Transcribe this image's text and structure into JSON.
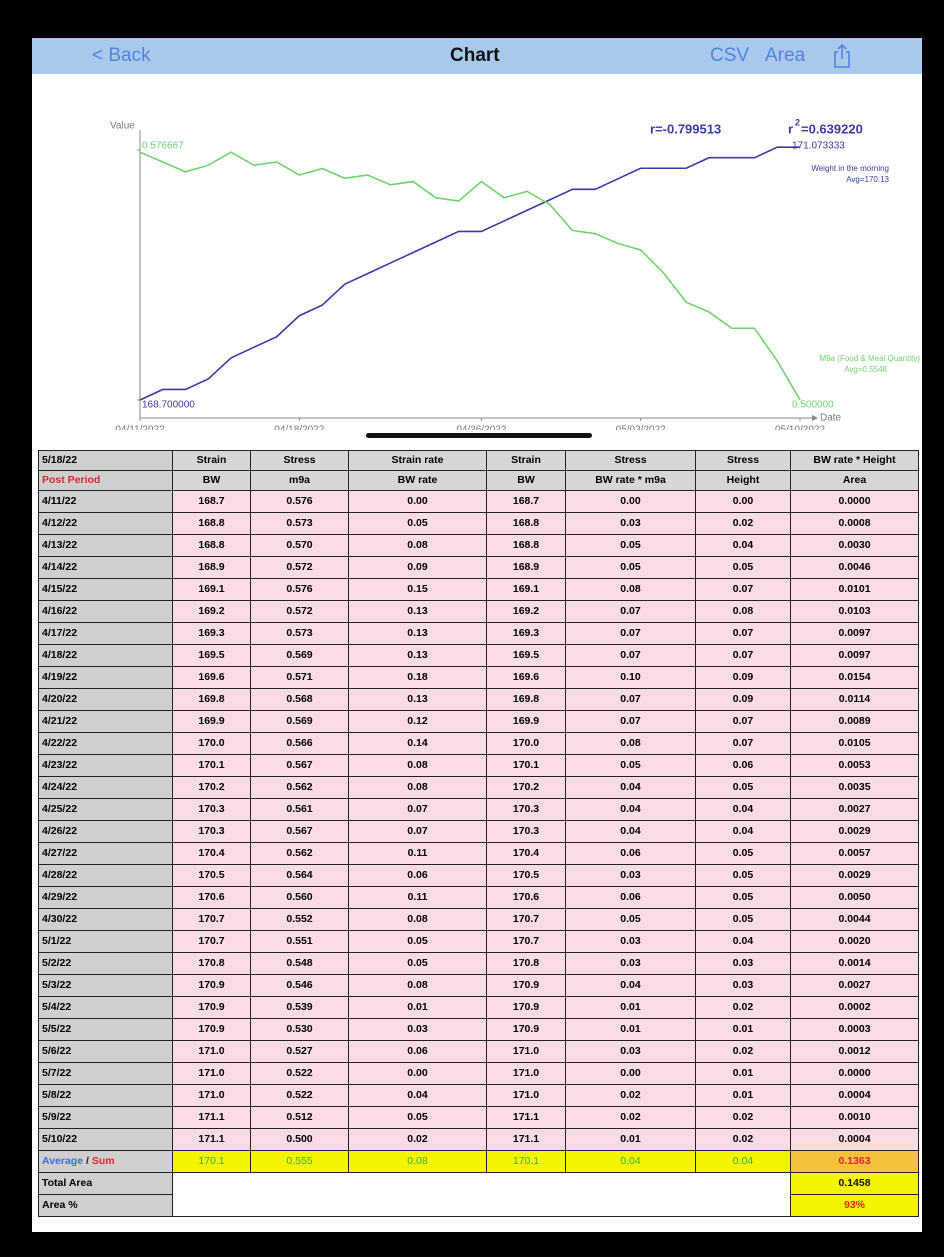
{
  "header": {
    "back": "< Back",
    "title": "Chart",
    "csv": "CSV",
    "area": "Area"
  },
  "chart_data": {
    "type": "line",
    "y_label": "Value",
    "x_label": "Date",
    "r": "r=-0.799513",
    "r2_prefix": "r",
    "r2_sup": "2",
    "r2_value": "=0.639220",
    "x": [
      "04/11/2022",
      "04/12/2022",
      "04/13/2022",
      "04/14/2022",
      "04/15/2022",
      "04/16/2022",
      "04/17/2022",
      "04/18/2022",
      "04/19/2022",
      "04/20/2022",
      "04/21/2022",
      "04/22/2022",
      "04/23/2022",
      "04/24/2022",
      "04/25/2022",
      "04/26/2022",
      "04/27/2022",
      "04/28/2022",
      "04/29/2022",
      "04/30/2022",
      "05/01/2022",
      "05/02/2022",
      "05/03/2022",
      "05/04/2022",
      "05/05/2022",
      "05/06/2022",
      "05/07/2022",
      "05/08/2022",
      "05/09/2022",
      "05/10/2022"
    ],
    "xticks": [
      "04/11/2022",
      "04/18/2022",
      "04/26/2022",
      "05/03/2022",
      "05/10/2022"
    ],
    "ylim": [
      168.7,
      171.073333
    ],
    "yticks": [
      {
        "value": 168.7,
        "label": "168.700000"
      },
      {
        "value": 171.073333,
        "label": "171.073333"
      }
    ],
    "y2lim": [
      0.5,
      0.576667
    ],
    "y2ticks": [
      {
        "value": 0.5,
        "label": "0.500000"
      },
      {
        "value": 0.576667,
        "label": "0.576667"
      }
    ],
    "series": [
      {
        "name": "Weight in the morning",
        "avg": "Avg=170.13",
        "color": "#3b3aa6",
        "values": [
          168.7,
          168.8,
          168.8,
          168.9,
          169.1,
          169.2,
          169.3,
          169.5,
          169.6,
          169.8,
          169.9,
          170.0,
          170.1,
          170.2,
          170.3,
          170.3,
          170.4,
          170.5,
          170.6,
          170.7,
          170.7,
          170.8,
          170.9,
          170.9,
          170.9,
          171.0,
          171.0,
          171.0,
          171.1,
          171.1
        ]
      },
      {
        "name": "M9a (Food & Meal Quantity)",
        "avg": "Avg=0.5548",
        "color": "#6fd36f",
        "axis": "y2",
        "values": [
          0.576,
          0.573,
          0.57,
          0.572,
          0.576,
          0.572,
          0.573,
          0.569,
          0.571,
          0.568,
          0.569,
          0.566,
          0.567,
          0.562,
          0.561,
          0.567,
          0.562,
          0.564,
          0.56,
          0.552,
          0.551,
          0.548,
          0.546,
          0.539,
          0.53,
          0.527,
          0.522,
          0.522,
          0.512,
          0.5
        ]
      }
    ]
  },
  "table": {
    "header_rows": [
      [
        "5/18/22",
        "Strain",
        "Stress",
        "Strain rate",
        "Strain",
        "Stress",
        "Stress",
        "BW rate * Height"
      ],
      [
        "Post Period",
        "BW",
        "m9a",
        "BW rate",
        "BW",
        "BW rate * m9a",
        "Height",
        "Area"
      ]
    ],
    "rows": [
      [
        "4/11/22",
        "168.7",
        "0.576",
        "0.00",
        "168.7",
        "0.00",
        "0.00",
        "0.0000"
      ],
      [
        "4/12/22",
        "168.8",
        "0.573",
        "0.05",
        "168.8",
        "0.03",
        "0.02",
        "0.0008"
      ],
      [
        "4/13/22",
        "168.8",
        "0.570",
        "0.08",
        "168.8",
        "0.05",
        "0.04",
        "0.0030"
      ],
      [
        "4/14/22",
        "168.9",
        "0.572",
        "0.09",
        "168.9",
        "0.05",
        "0.05",
        "0.0046"
      ],
      [
        "4/15/22",
        "169.1",
        "0.576",
        "0.15",
        "169.1",
        "0.08",
        "0.07",
        "0.0101"
      ],
      [
        "4/16/22",
        "169.2",
        "0.572",
        "0.13",
        "169.2",
        "0.07",
        "0.08",
        "0.0103"
      ],
      [
        "4/17/22",
        "169.3",
        "0.573",
        "0.13",
        "169.3",
        "0.07",
        "0.07",
        "0.0097"
      ],
      [
        "4/18/22",
        "169.5",
        "0.569",
        "0.13",
        "169.5",
        "0.07",
        "0.07",
        "0.0097"
      ],
      [
        "4/19/22",
        "169.6",
        "0.571",
        "0.18",
        "169.6",
        "0.10",
        "0.09",
        "0.0154"
      ],
      [
        "4/20/22",
        "169.8",
        "0.568",
        "0.13",
        "169.8",
        "0.07",
        "0.09",
        "0.0114"
      ],
      [
        "4/21/22",
        "169.9",
        "0.569",
        "0.12",
        "169.9",
        "0.07",
        "0.07",
        "0.0089"
      ],
      [
        "4/22/22",
        "170.0",
        "0.566",
        "0.14",
        "170.0",
        "0.08",
        "0.07",
        "0.0105"
      ],
      [
        "4/23/22",
        "170.1",
        "0.567",
        "0.08",
        "170.1",
        "0.05",
        "0.06",
        "0.0053"
      ],
      [
        "4/24/22",
        "170.2",
        "0.562",
        "0.08",
        "170.2",
        "0.04",
        "0.05",
        "0.0035"
      ],
      [
        "4/25/22",
        "170.3",
        "0.561",
        "0.07",
        "170.3",
        "0.04",
        "0.04",
        "0.0027"
      ],
      [
        "4/26/22",
        "170.3",
        "0.567",
        "0.07",
        "170.3",
        "0.04",
        "0.04",
        "0.0029"
      ],
      [
        "4/27/22",
        "170.4",
        "0.562",
        "0.11",
        "170.4",
        "0.06",
        "0.05",
        "0.0057"
      ],
      [
        "4/28/22",
        "170.5",
        "0.564",
        "0.06",
        "170.5",
        "0.03",
        "0.05",
        "0.0029"
      ],
      [
        "4/29/22",
        "170.6",
        "0.560",
        "0.11",
        "170.6",
        "0.06",
        "0.05",
        "0.0050"
      ],
      [
        "4/30/22",
        "170.7",
        "0.552",
        "0.08",
        "170.7",
        "0.05",
        "0.05",
        "0.0044"
      ],
      [
        "5/1/22",
        "170.7",
        "0.551",
        "0.05",
        "170.7",
        "0.03",
        "0.04",
        "0.0020"
      ],
      [
        "5/2/22",
        "170.8",
        "0.548",
        "0.05",
        "170.8",
        "0.03",
        "0.03",
        "0.0014"
      ],
      [
        "5/3/22",
        "170.9",
        "0.546",
        "0.08",
        "170.9",
        "0.04",
        "0.03",
        "0.0027"
      ],
      [
        "5/4/22",
        "170.9",
        "0.539",
        "0.01",
        "170.9",
        "0.01",
        "0.02",
        "0.0002"
      ],
      [
        "5/5/22",
        "170.9",
        "0.530",
        "0.03",
        "170.9",
        "0.01",
        "0.01",
        "0.0003"
      ],
      [
        "5/6/22",
        "171.0",
        "0.527",
        "0.06",
        "171.0",
        "0.03",
        "0.02",
        "0.0012"
      ],
      [
        "5/7/22",
        "171.0",
        "0.522",
        "0.00",
        "171.0",
        "0.00",
        "0.01",
        "0.0000"
      ],
      [
        "5/8/22",
        "171.0",
        "0.522",
        "0.04",
        "171.0",
        "0.02",
        "0.01",
        "0.0004"
      ],
      [
        "5/9/22",
        "171.1",
        "0.512",
        "0.05",
        "171.1",
        "0.02",
        "0.02",
        "0.0010"
      ],
      [
        "5/10/22",
        "171.1",
        "0.500",
        "0.02",
        "171.1",
        "0.01",
        "0.02",
        "0.0004"
      ]
    ],
    "average": {
      "label_a": "Average",
      "sep": "/",
      "label_b": "Sum",
      "values": [
        "170.1",
        "0.555",
        "0.08",
        "170.1",
        "0.04",
        "0.04"
      ],
      "sum": "0.1363"
    },
    "total": {
      "label": "Total Area",
      "value": "0.1458"
    },
    "percent": {
      "label": "Area %",
      "value": "93%"
    }
  }
}
